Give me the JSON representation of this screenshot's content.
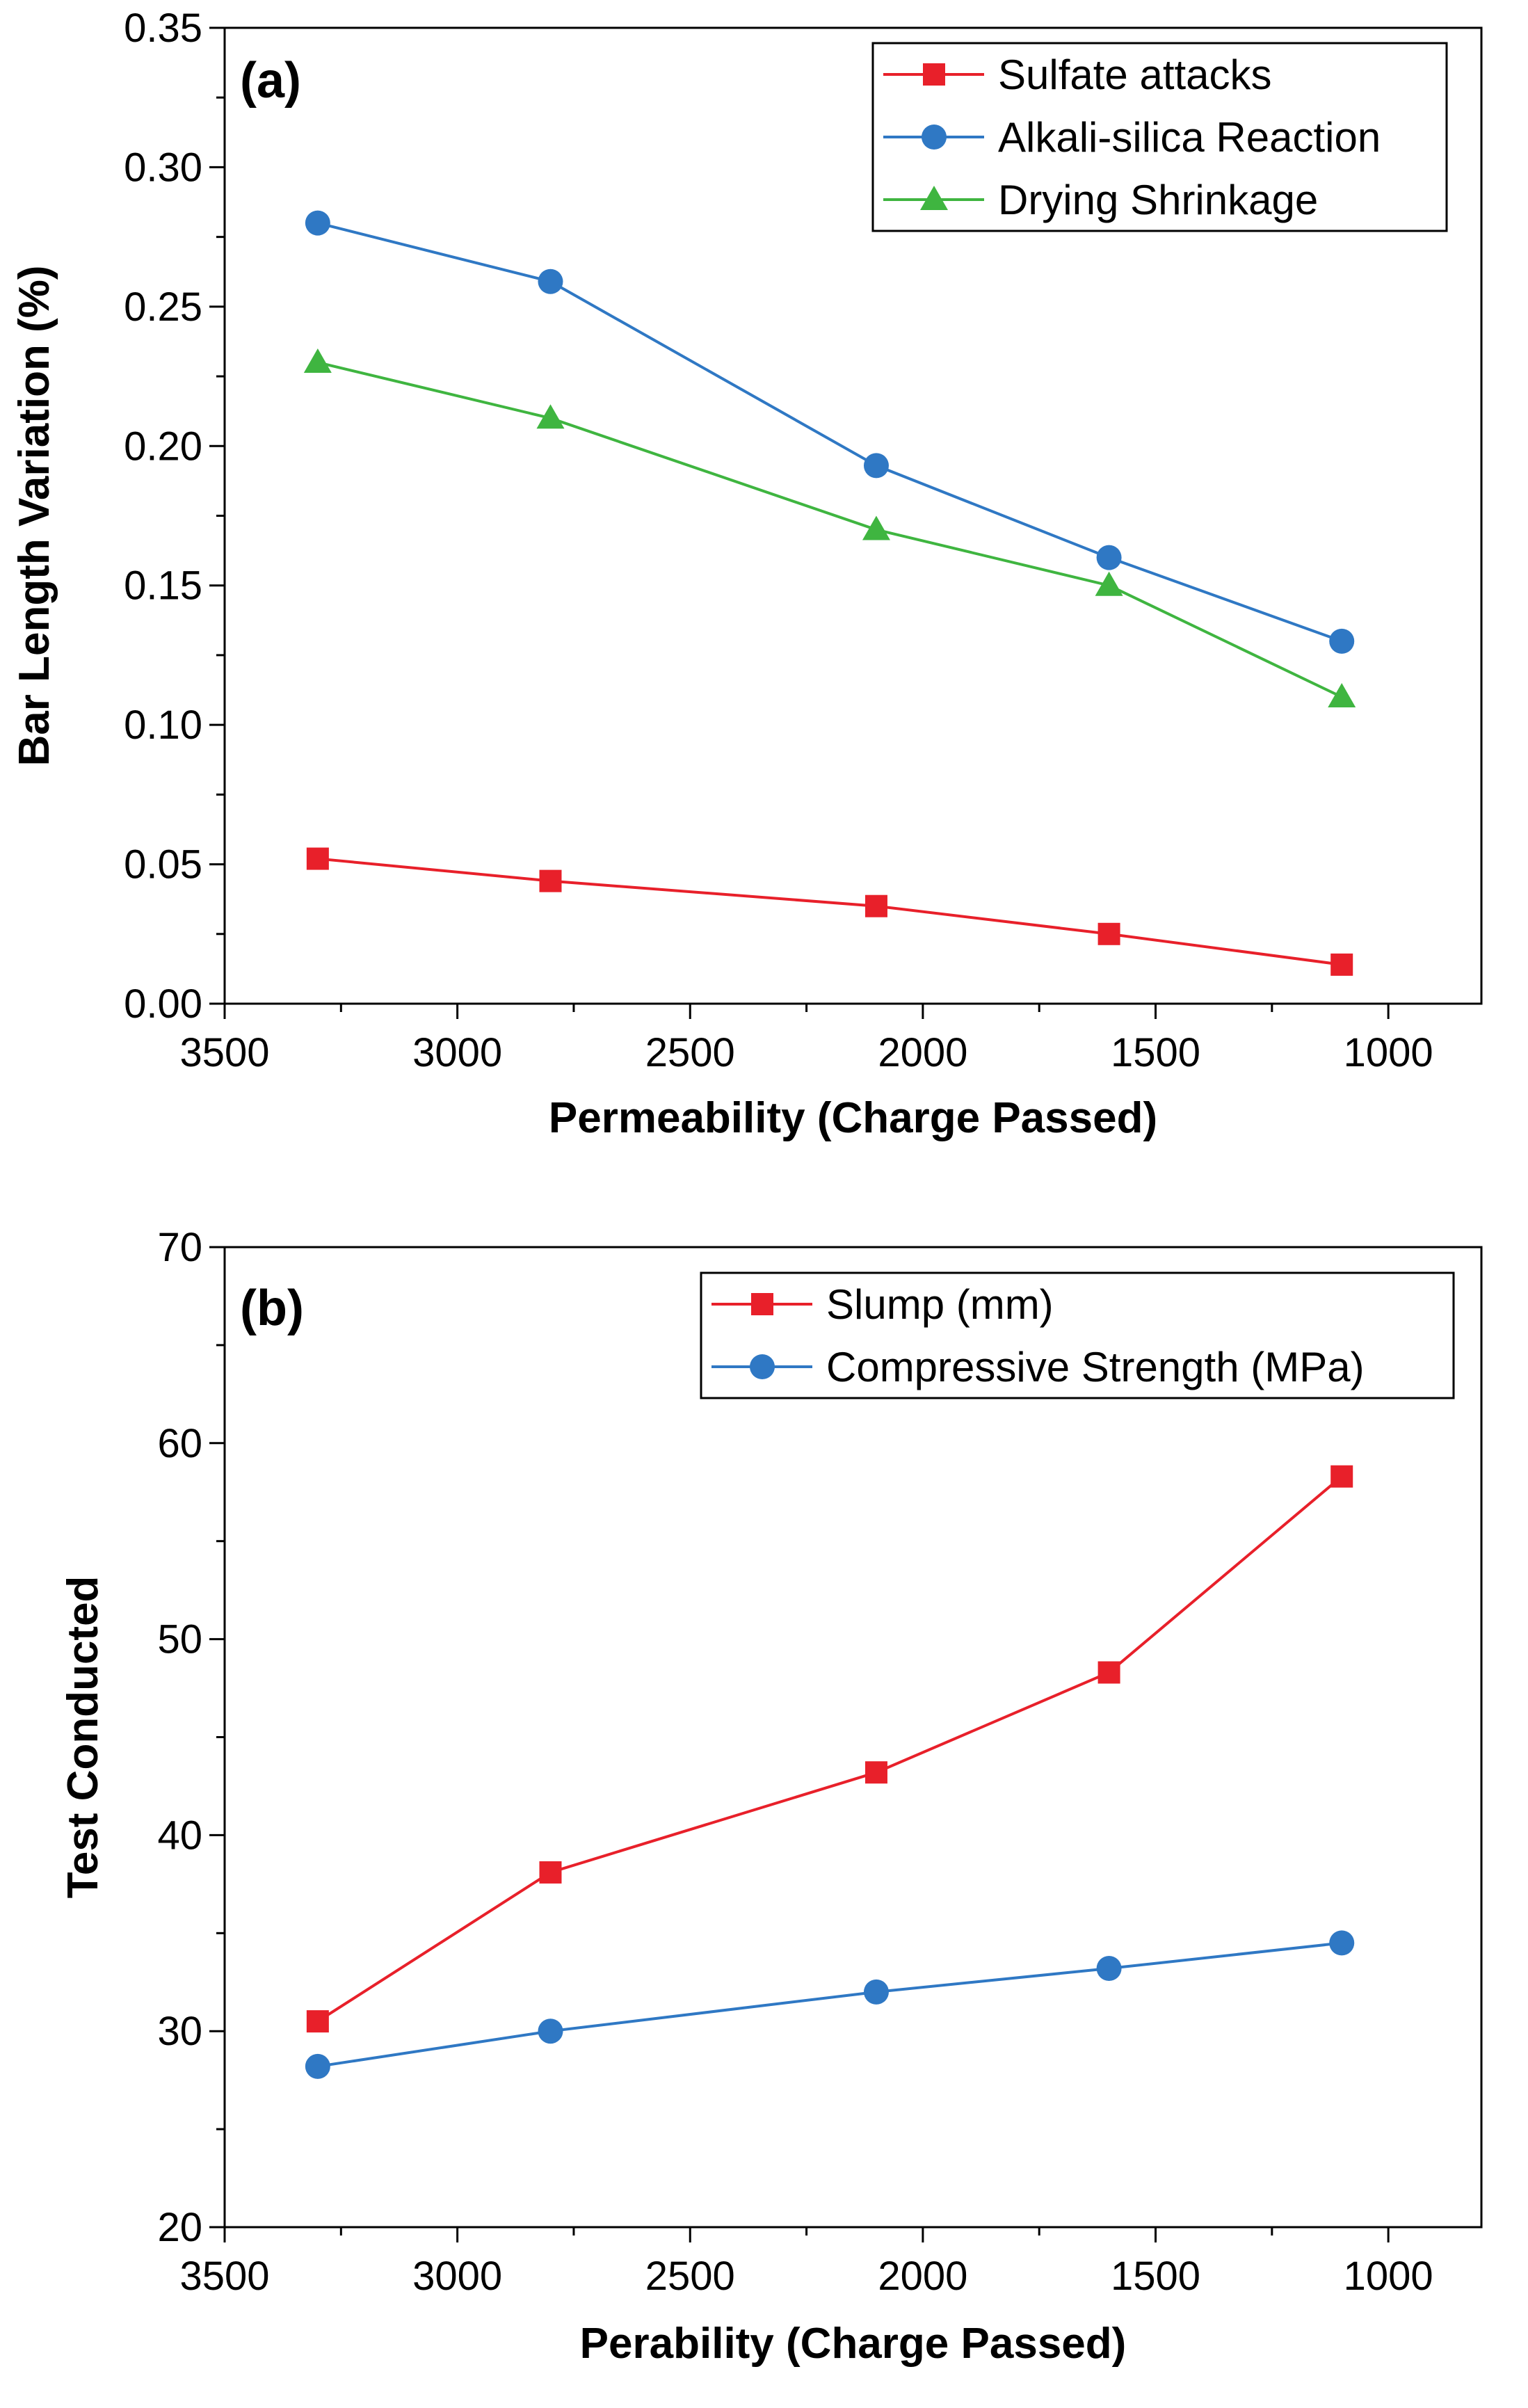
{
  "chart_data": [
    {
      "type": "line",
      "panel_label": "(a)",
      "xlabel": "Permeability (Charge Passed)",
      "ylabel": "Bar Length Variation (%)",
      "xlim": [
        3500,
        800
      ],
      "ylim": [
        0.0,
        0.35
      ],
      "x_ticks": [
        3500,
        3000,
        2500,
        2000,
        1500,
        1000
      ],
      "y_ticks": [
        0.0,
        0.05,
        0.1,
        0.15,
        0.2,
        0.25,
        0.3,
        0.35
      ],
      "y_decimals": 2,
      "x": [
        3300,
        2800,
        2100,
        1600,
        1100
      ],
      "legend_position": "top-right",
      "series": [
        {
          "name": "Sulfate attacks",
          "color": "#e8202a",
          "marker": "square",
          "values": [
            0.052,
            0.044,
            0.035,
            0.025,
            0.014
          ]
        },
        {
          "name": "Alkali-silica Reaction",
          "color": "#2f78c4",
          "marker": "circle",
          "values": [
            0.28,
            0.259,
            0.193,
            0.16,
            0.13
          ]
        },
        {
          "name": "Drying Shrinkage",
          "color": "#3fb540",
          "marker": "triangle",
          "values": [
            0.23,
            0.21,
            0.17,
            0.15,
            0.11
          ]
        }
      ]
    },
    {
      "type": "line",
      "panel_label": "(b)",
      "xlabel": "Perability (Charge Passed)",
      "ylabel": "Test Conducted",
      "xlim": [
        3500,
        800
      ],
      "ylim": [
        20,
        70
      ],
      "x_ticks": [
        3500,
        3000,
        2500,
        2000,
        1500,
        1000
      ],
      "y_ticks": [
        20,
        30,
        40,
        50,
        60,
        70
      ],
      "y_decimals": 0,
      "x": [
        3300,
        2800,
        2100,
        1600,
        1100
      ],
      "legend_position": "top-right",
      "series": [
        {
          "name": "Slump (mm)",
          "color": "#e8202a",
          "marker": "square",
          "values": [
            30.5,
            38.1,
            43.2,
            48.3,
            58.3
          ]
        },
        {
          "name": "Compressive Strength (MPa)",
          "color": "#2f78c4",
          "marker": "circle",
          "values": [
            28.2,
            30.0,
            32.0,
            33.2,
            34.5
          ]
        }
      ]
    }
  ]
}
